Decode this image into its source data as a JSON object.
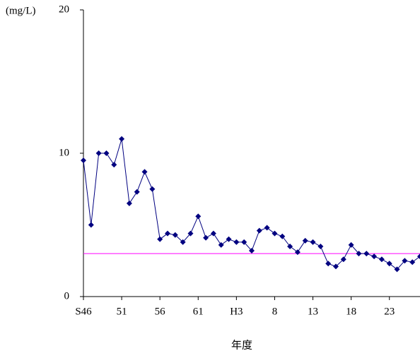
{
  "chart_data": {
    "type": "line",
    "y_label": "(mg/L)",
    "x_label": "年度",
    "categories": [
      "S46",
      null,
      null,
      null,
      null,
      "51",
      null,
      null,
      null,
      null,
      "56",
      null,
      null,
      null,
      null,
      "61",
      null,
      null,
      null,
      null,
      "H3",
      null,
      null,
      null,
      null,
      "8",
      null,
      null,
      null,
      null,
      "13",
      null,
      null,
      null,
      null,
      "18",
      null,
      null,
      null,
      null,
      "23",
      null,
      null,
      null,
      null
    ],
    "series": [
      {
        "color": "#000080",
        "values": [
          9.5,
          5.0,
          10.0,
          10.0,
          9.2,
          11.0,
          6.5,
          7.3,
          8.7,
          7.5,
          4.0,
          4.4,
          4.3,
          3.8,
          4.4,
          5.6,
          4.1,
          4.4,
          3.6,
          4.0,
          3.8,
          3.8,
          3.2,
          4.6,
          4.8,
          4.4,
          4.2,
          3.5,
          3.1,
          3.9,
          3.8,
          3.5,
          2.3,
          2.1,
          2.6,
          3.6,
          3.0,
          3.0,
          2.8,
          2.6,
          2.3,
          1.9,
          2.5,
          2.4,
          2.8
        ]
      }
    ],
    "hline": {
      "value": 3,
      "color": "#ff00ff"
    },
    "ylim": [
      0,
      20
    ],
    "yticks": [
      0,
      10,
      20
    ],
    "grid": false
  }
}
